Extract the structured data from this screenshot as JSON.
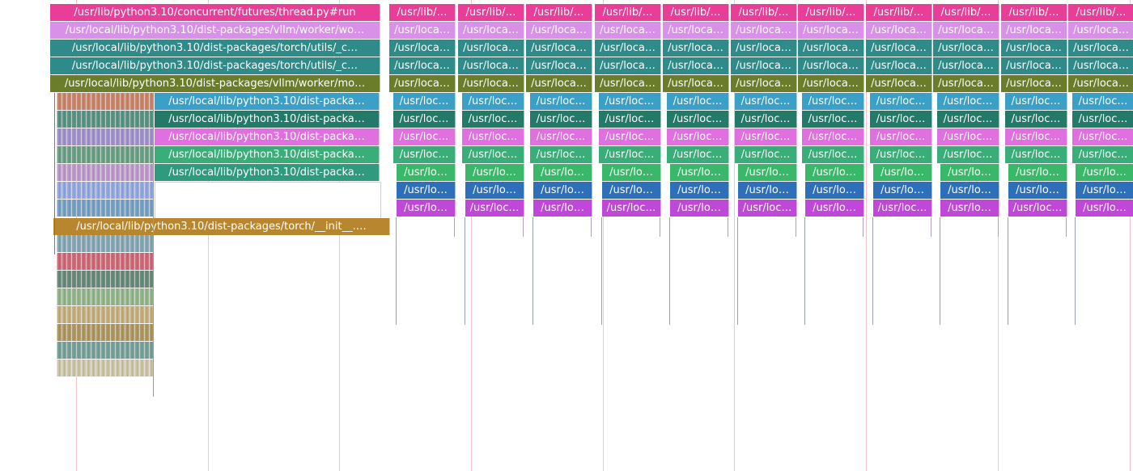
{
  "colors": {
    "background": "#ffffff",
    "marker_line": "#f3c4cc",
    "magenta": "#e83e98",
    "lavender": "#d890e8",
    "teal": "#2f8a8a",
    "olive": "#6b7d2a",
    "skyblue": "#3aa0c8",
    "darkteal": "#237a68",
    "pink": "#e070e0",
    "green": "#3aae78",
    "seagreen": "#2e9a7e",
    "limegreen": "#38b868",
    "blue": "#2d6fb8",
    "purple": "#c048d8",
    "ochre": "#b8862e",
    "steelblue": "#4a86b0"
  },
  "trace": {
    "main_stack": [
      "/usr/lib/python3.10/concurrent/futures/thread.py#run",
      "/usr/local/lib/python3.10/dist-packages/vllm/worker/wo…",
      "/usr/local/lib/python3.10/dist-packages/torch/utils/_c…",
      "/usr/local/lib/python3.10/dist-packages/torch/utils/_c…",
      "/usr/local/lib/python3.10/dist-packages/vllm/worker/mo…",
      "/usr/local/lib/python3.10/dist-packa…",
      "/usr/local/lib/python3.10/dist-packa…",
      "/usr/local/lib/python3.10/dist-packa…",
      "/usr/local/lib/python3.10/dist-packa…",
      "/usr/local/lib/python3.10/dist-packa…"
    ],
    "torch_init_label": "/usr/local/lib/python3.10/dist-packages/torch/__init__.…",
    "column_stack": [
      "/usr/lib/…",
      "/usr/loca…",
      "/usr/loca…",
      "/usr/loca…",
      "/usr/loca…",
      "/usr/loc…",
      "/usr/loc…",
      "/usr/loc…",
      "/usr/loc…",
      "/usr/lo…",
      "/usr/lo…",
      "/usr/lo…"
    ],
    "column_stack_alt": [
      "/usr/lib/…",
      "/usr/loca…",
      "/usr/loca…",
      "/usr/loca…",
      "/usr/loca…",
      "/usr/loc…",
      "/usr/loc…",
      "/usr/loc…",
      "/usr/loc…",
      "/usr/lo…",
      "/usr/lo…",
      "/usr/loc…"
    ],
    "column_stack_last": [
      "/usr/lib/…",
      "/usr/loca…",
      "/usr/loca…",
      "/usr/loca…",
      "/usr/loca…",
      "/usr/loc…",
      "/usr/loc…",
      "/usr/loc…",
      "/usr/loc…",
      "/usr/lo…",
      "/usr/lo…",
      "/usr/lo…"
    ]
  }
}
